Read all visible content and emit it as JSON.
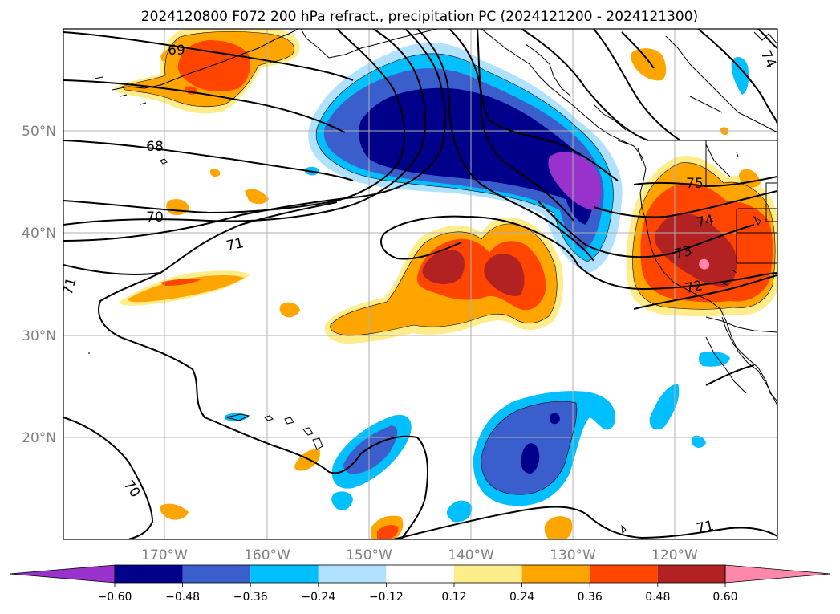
{
  "title": "2024120800 F072 200 hPa refract., precipitation PC (2024121200 - 2024121300)",
  "lat_labels": [
    "50°N",
    "40°N",
    "30°N",
    "20°N"
  ],
  "lon_labels": [
    "170°W",
    "160°W",
    "150°W",
    "140°W",
    "130°W",
    "120°W"
  ],
  "colorbar": {
    "tick_labels": [
      "−0.60",
      "−0.48",
      "−0.36",
      "−0.24",
      "−0.12",
      "0.12",
      "0.24",
      "0.36",
      "0.48",
      "0.60"
    ],
    "colors": [
      "#9932cc",
      "#00008b",
      "#3a5fcd",
      "#00bfff",
      "#b0e2ff",
      "#ffffff",
      "#ffec8b",
      "#ffa500",
      "#ff4500",
      "#b22222",
      "#ff88aa"
    ]
  },
  "contour_labels": [
    "69",
    "68",
    "70",
    "71",
    "71",
    "70",
    "75",
    "74",
    "73",
    "72",
    "71",
    "74"
  ]
}
